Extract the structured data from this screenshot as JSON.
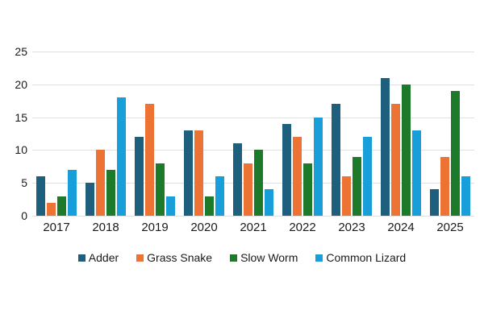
{
  "chart_data": {
    "type": "bar",
    "title": "",
    "xlabel": "",
    "ylabel": "",
    "categories": [
      "2017",
      "2018",
      "2019",
      "2020",
      "2021",
      "2022",
      "2023",
      "2024",
      "2025"
    ],
    "series": [
      {
        "name": "Adder",
        "color": "#1f5f7e",
        "values": [
          6,
          5,
          12,
          13,
          11,
          14,
          17,
          21,
          4
        ]
      },
      {
        "name": "Grass Snake",
        "color": "#ec7333",
        "values": [
          2,
          10,
          17,
          13,
          8,
          12,
          6,
          17,
          9
        ]
      },
      {
        "name": "Slow Worm",
        "color": "#1e7a2b",
        "values": [
          3,
          7,
          8,
          3,
          10,
          8,
          9,
          20,
          19
        ]
      },
      {
        "name": "Common Lizard",
        "color": "#189ed9",
        "values": [
          7,
          18,
          3,
          6,
          4,
          15,
          12,
          13,
          6
        ]
      }
    ],
    "ylim": [
      0,
      25
    ],
    "yticks": [
      0,
      5,
      10,
      15,
      20,
      25
    ],
    "grid": true,
    "gridline_color": "#e0e0e0",
    "axis_text_color": "#1a1a1a",
    "legend_position": "bottom"
  }
}
